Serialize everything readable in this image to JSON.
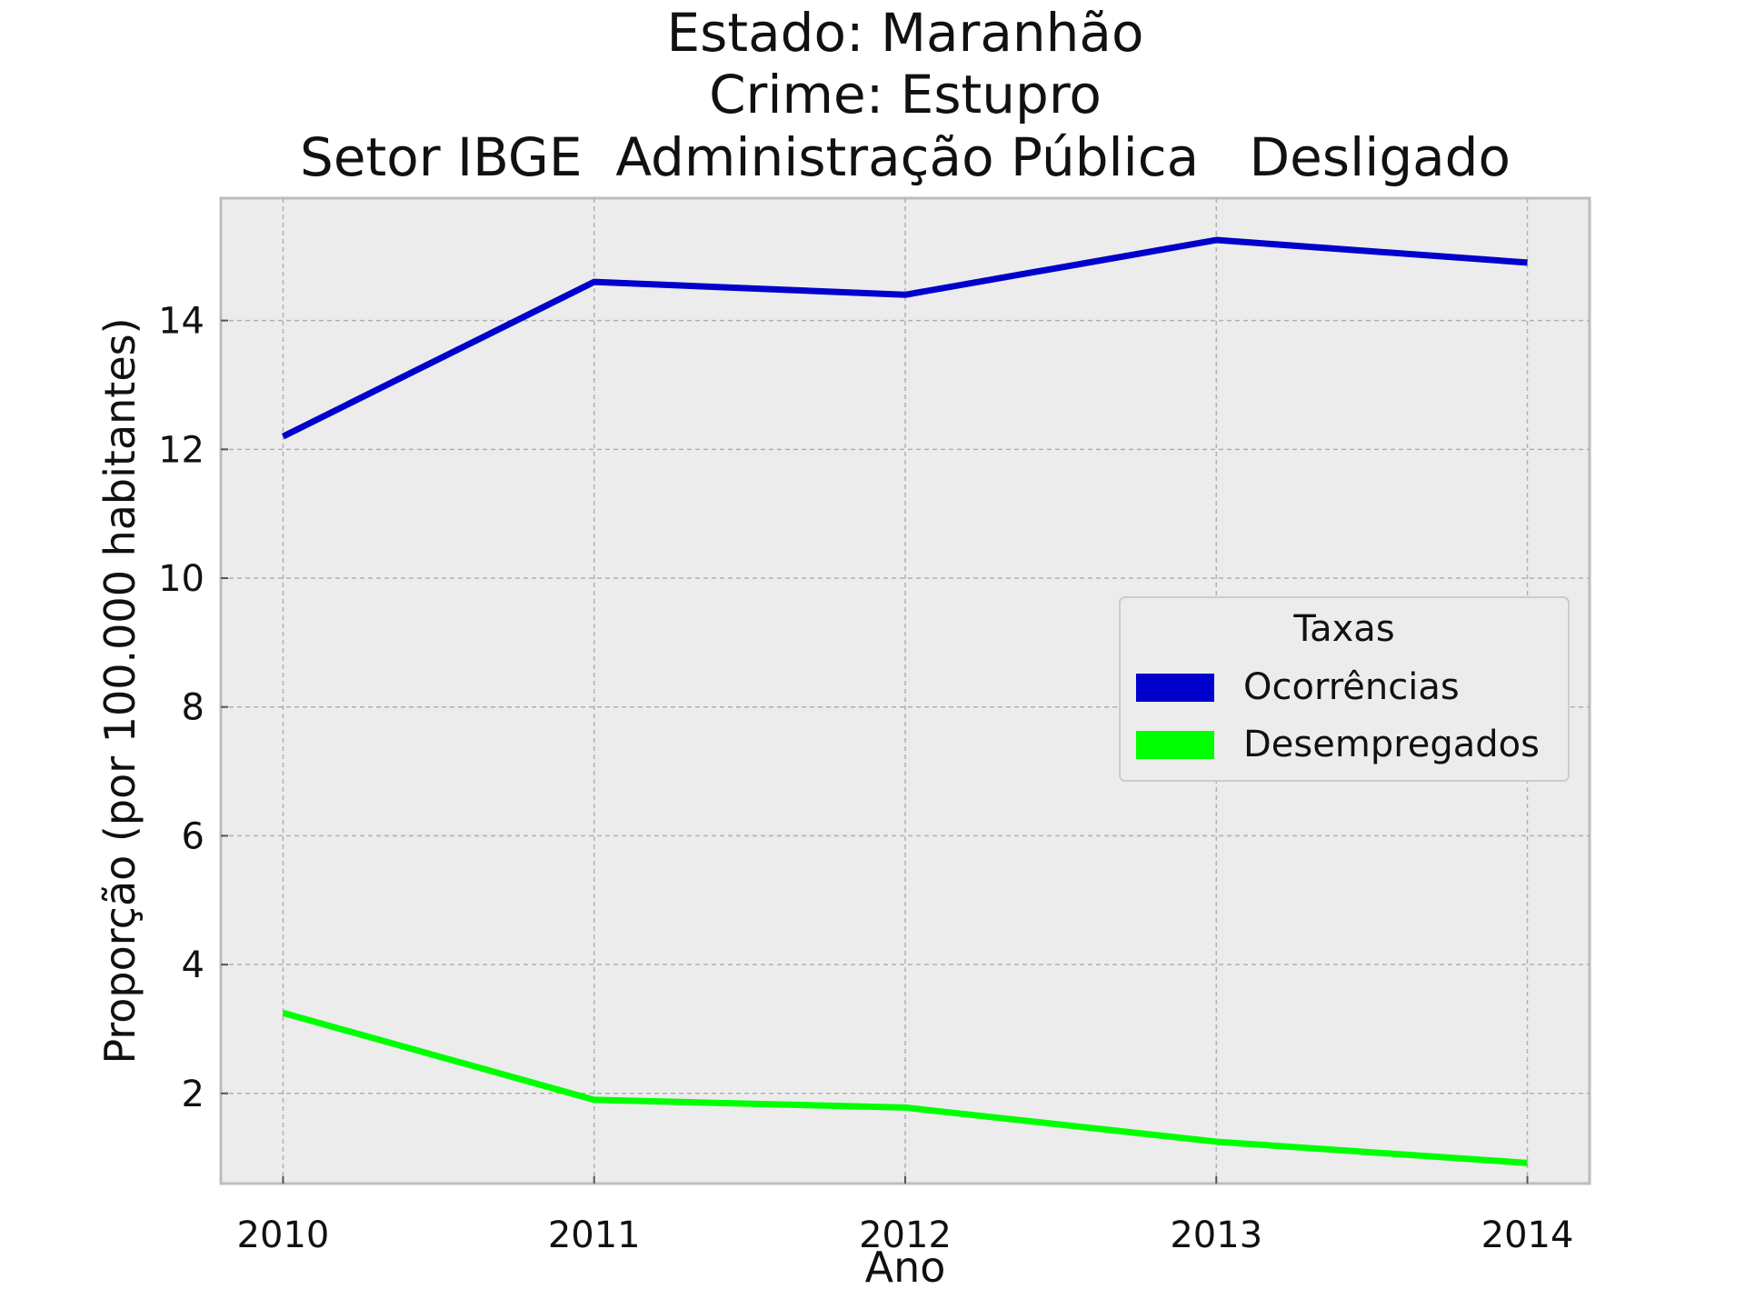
{
  "chart_data": {
    "type": "line",
    "title_lines": [
      "Estado: Maranhão",
      "Crime: Estupro",
      "Setor IBGE  Administração Pública   Desligado"
    ],
    "xlabel": "Ano",
    "ylabel": "Proporção (por 100.000 habitantes)",
    "x": [
      2010,
      2011,
      2012,
      2013,
      2014
    ],
    "x_tick_labels": [
      "2010",
      "2011",
      "2012",
      "2013",
      "2014"
    ],
    "xlim": [
      2009.8,
      2014.2
    ],
    "ylim": [
      0.6,
      15.9
    ],
    "y_ticks": [
      2,
      4,
      6,
      8,
      10,
      12,
      14
    ],
    "y_tick_labels": [
      "2",
      "4",
      "6",
      "8",
      "10",
      "12",
      "14"
    ],
    "grid": true,
    "background": "#ececec",
    "legend": {
      "title": "Taxas",
      "placement": "center-right"
    },
    "series": [
      {
        "name": "Ocorrências",
        "color": "#0000cc",
        "values": [
          12.2,
          14.6,
          14.4,
          15.25,
          14.9
        ]
      },
      {
        "name": "Desempregados",
        "color": "#00ff00",
        "values": [
          3.25,
          1.9,
          1.78,
          1.25,
          0.92
        ]
      }
    ]
  }
}
